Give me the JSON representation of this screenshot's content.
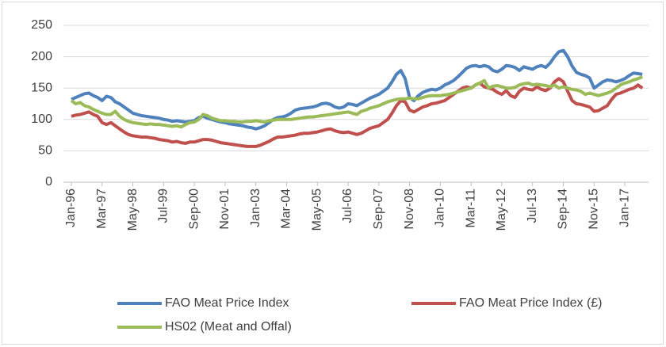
{
  "chart_data": {
    "type": "line",
    "categories": [
      "Jan-96",
      null,
      null,
      null,
      null,
      null,
      null,
      "Mar-97",
      null,
      null,
      null,
      null,
      null,
      null,
      "May-98",
      null,
      null,
      null,
      null,
      null,
      null,
      "Jul-99",
      null,
      null,
      null,
      null,
      null,
      null,
      "Sep-00",
      null,
      null,
      null,
      null,
      null,
      null,
      "Nov-01",
      null,
      null,
      null,
      null,
      null,
      null,
      "Jan-03",
      null,
      null,
      null,
      null,
      null,
      null,
      "Mar-04",
      null,
      null,
      null,
      null,
      null,
      null,
      "May-05",
      null,
      null,
      null,
      null,
      null,
      null,
      "Jul-06",
      null,
      null,
      null,
      null,
      null,
      null,
      "Sep-07",
      null,
      null,
      null,
      null,
      null,
      null,
      "Nov-08",
      null,
      null,
      null,
      null,
      null,
      null,
      "Jan-10",
      null,
      null,
      null,
      null,
      null,
      null,
      "Mar-11",
      null,
      null,
      null,
      null,
      null,
      null,
      "May-12",
      null,
      null,
      null,
      null,
      null,
      null,
      "Jul-13",
      null,
      null,
      null,
      null,
      null,
      null,
      "Sep-14",
      null,
      null,
      null,
      null,
      null,
      null,
      "Nov-15",
      null,
      null,
      null,
      null,
      null,
      null,
      "Jan-17",
      null,
      null,
      null,
      null
    ],
    "series": [
      {
        "name": "FAO Meat Price Index",
        "color": "#4f81bd",
        "values": [
          132,
          135,
          138,
          141,
          142,
          138,
          135,
          130,
          137,
          135,
          128,
          125,
          120,
          115,
          110,
          108,
          106,
          105,
          104,
          103,
          102,
          100,
          99,
          97,
          98,
          97,
          96,
          97,
          98,
          103,
          105,
          102,
          100,
          98,
          96,
          95,
          93,
          92,
          91,
          90,
          88,
          87,
          85,
          87,
          90,
          95,
          100,
          103,
          104,
          106,
          110,
          115,
          117,
          118,
          119,
          120,
          122,
          125,
          126,
          124,
          120,
          118,
          120,
          125,
          124,
          122,
          126,
          130,
          134,
          137,
          140,
          145,
          150,
          160,
          172,
          178,
          165,
          135,
          130,
          138,
          143,
          146,
          148,
          147,
          150,
          155,
          158,
          162,
          168,
          175,
          182,
          185,
          186,
          184,
          186,
          184,
          178,
          176,
          180,
          186,
          185,
          183,
          178,
          184,
          182,
          180,
          184,
          186,
          183,
          190,
          200,
          208,
          210,
          200,
          185,
          175,
          172,
          170,
          166,
          150,
          155,
          160,
          163,
          162,
          160,
          162,
          165,
          170,
          174,
          173,
          172
        ]
      },
      {
        "name": "FAO Meat Price Index (£)",
        "color": "#c0504d",
        "values": [
          105,
          107,
          108,
          110,
          112,
          108,
          105,
          95,
          92,
          95,
          90,
          85,
          80,
          76,
          74,
          73,
          72,
          72,
          71,
          70,
          68,
          67,
          66,
          64,
          65,
          63,
          62,
          64,
          64,
          66,
          68,
          68,
          67,
          65,
          63,
          62,
          61,
          60,
          59,
          58,
          57,
          57,
          57,
          59,
          62,
          65,
          69,
          72,
          72,
          73,
          74,
          75,
          77,
          78,
          78,
          79,
          80,
          82,
          84,
          85,
          82,
          80,
          79,
          80,
          78,
          76,
          78,
          82,
          86,
          88,
          90,
          95,
          100,
          110,
          122,
          130,
          128,
          115,
          112,
          116,
          120,
          122,
          125,
          126,
          128,
          130,
          135,
          140,
          145,
          150,
          152,
          150,
          155,
          158,
          152,
          150,
          148,
          143,
          140,
          146,
          138,
          135,
          145,
          150,
          148,
          147,
          152,
          148,
          146,
          150,
          160,
          165,
          160,
          145,
          130,
          125,
          124,
          122,
          120,
          113,
          114,
          118,
          122,
          132,
          140,
          142,
          145,
          148,
          150,
          155,
          150
        ]
      },
      {
        "name": "HS02 (Meat and Offal)",
        "color": "#9bbb59",
        "values": [
          130,
          125,
          127,
          122,
          120,
          116,
          113,
          110,
          108,
          108,
          113,
          105,
          100,
          97,
          95,
          94,
          93,
          92,
          93,
          92,
          92,
          91,
          90,
          89,
          90,
          88,
          92,
          95,
          96,
          100,
          108,
          106,
          102,
          100,
          98,
          98,
          97,
          97,
          96,
          96,
          97,
          97,
          98,
          97,
          96,
          98,
          99,
          100,
          100,
          100,
          100,
          101,
          102,
          103,
          104,
          104,
          105,
          106,
          107,
          108,
          109,
          110,
          111,
          112,
          110,
          108,
          113,
          115,
          118,
          120,
          122,
          125,
          128,
          130,
          132,
          133,
          133,
          134,
          133,
          133,
          135,
          137,
          138,
          138,
          138,
          139,
          140,
          142,
          144,
          146,
          148,
          150,
          155,
          158,
          162,
          150,
          153,
          154,
          152,
          150,
          150,
          151,
          155,
          157,
          158,
          155,
          156,
          155,
          154,
          152,
          155,
          150,
          152,
          150,
          148,
          147,
          145,
          140,
          142,
          140,
          138,
          140,
          142,
          145,
          150,
          155,
          158,
          160,
          163,
          165,
          168
        ]
      }
    ],
    "ylim": [
      0,
      250
    ],
    "yticks": [
      0,
      50,
      100,
      150,
      200,
      250
    ],
    "grid": true,
    "legend": "bottom"
  }
}
